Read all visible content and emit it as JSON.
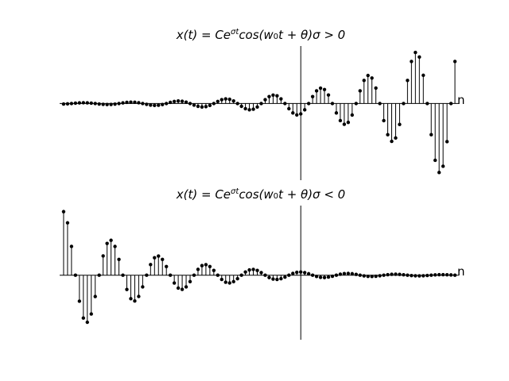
{
  "chart_data": [
    {
      "type": "stem",
      "title": [
        "x(t) = Ce",
        "σt",
        "cos(w",
        "0",
        "t + θ)σ > 0"
      ],
      "xlabel": "n",
      "color": "#000000",
      "xlim": [
        -61,
        40
      ],
      "ylim": [
        -6.4,
        4.8
      ],
      "x": [
        -60,
        -59,
        -58,
        -57,
        -56,
        -55,
        -54,
        -53,
        -52,
        -51,
        -50,
        -49,
        -48,
        -47,
        -46,
        -45,
        -44,
        -43,
        -42,
        -41,
        -40,
        -39,
        -38,
        -37,
        -36,
        -35,
        -34,
        -33,
        -32,
        -31,
        -30,
        -29,
        -28,
        -27,
        -26,
        -25,
        -24,
        -23,
        -22,
        -21,
        -20,
        -19,
        -18,
        -17,
        -16,
        -15,
        -14,
        -13,
        -12,
        -11,
        -10,
        -9,
        -8,
        -7,
        -6,
        -5,
        -4,
        -3,
        -2,
        -1,
        0,
        1,
        2,
        3,
        4,
        5,
        6,
        7,
        8,
        9,
        10,
        11,
        12,
        13,
        14,
        15,
        16,
        17,
        18,
        19,
        20,
        21,
        22,
        23,
        24,
        25,
        26,
        27,
        28,
        29,
        30,
        31,
        32,
        33,
        34,
        35,
        36,
        37,
        38,
        39
      ],
      "values": [
        -0.043,
        -0.026,
        0,
        0.029,
        0.053,
        0.064,
        0.058,
        0.035,
        0,
        -0.039,
        -0.071,
        -0.086,
        -0.079,
        -0.048,
        0,
        0.053,
        0.096,
        0.117,
        0.106,
        0.064,
        0,
        -0.071,
        -0.13,
        -0.157,
        -0.143,
        -0.087,
        0,
        0.096,
        0.175,
        0.212,
        0.193,
        0.117,
        0,
        -0.13,
        -0.236,
        -0.287,
        -0.261,
        -0.158,
        0,
        0.175,
        0.319,
        0.387,
        0.352,
        0.214,
        0,
        -0.236,
        -0.43,
        -0.522,
        -0.475,
        -0.288,
        0,
        0.319,
        0.58,
        0.705,
        0.642,
        0.389,
        0,
        -0.43,
        -0.784,
        -0.951,
        -0.866,
        -0.526,
        0,
        0.581,
        1.058,
        1.284,
        1.169,
        0.71,
        0,
        -0.784,
        -1.428,
        -1.733,
        -1.578,
        -0.958,
        0,
        1.059,
        1.927,
        2.34,
        2.13,
        1.293,
        0,
        -1.429,
        -2.602,
        -3.158,
        -2.875,
        -1.745,
        0,
        1.929,
        3.512,
        4.263,
        3.881,
        2.356,
        0,
        -2.604,
        -4.74,
        -5.755,
        -5.239,
        -3.18,
        0,
        3.514
      ]
    },
    {
      "type": "stem",
      "title": [
        "x(t) = Ce",
        "σt",
        "cos(w",
        "0",
        "t + θ)σ < 0"
      ],
      "xlabel": "n",
      "color": "#000000",
      "xlim": [
        -61,
        40
      ],
      "ylim": [
        -5.1,
        5.5
      ],
      "x": [
        -60,
        -59,
        -58,
        -57,
        -56,
        -55,
        -54,
        -53,
        -52,
        -51,
        -50,
        -49,
        -48,
        -47,
        -46,
        -45,
        -44,
        -43,
        -42,
        -41,
        -40,
        -39,
        -38,
        -37,
        -36,
        -35,
        -34,
        -33,
        -32,
        -31,
        -30,
        -29,
        -28,
        -27,
        -26,
        -25,
        -24,
        -23,
        -22,
        -21,
        -20,
        -19,
        -18,
        -17,
        -16,
        -15,
        -14,
        -13,
        -12,
        -11,
        -10,
        -9,
        -8,
        -7,
        -6,
        -5,
        -4,
        -3,
        -2,
        -1,
        0,
        1,
        2,
        3,
        4,
        5,
        6,
        7,
        8,
        9,
        10,
        11,
        12,
        13,
        14,
        15,
        16,
        17,
        18,
        19,
        20,
        21,
        22,
        23,
        24,
        25,
        26,
        27,
        28,
        29,
        30,
        31,
        32,
        33,
        34,
        35,
        36,
        37,
        38,
        39
      ],
      "values": [
        5.021,
        4.136,
        2.272,
        0,
        -2.056,
        -3.387,
        -3.72,
        -3.065,
        -1.683,
        0,
        1.523,
        2.509,
        2.756,
        2.27,
        1.247,
        0,
        -1.128,
        -1.858,
        -2.041,
        -1.682,
        -0.924,
        0,
        0.836,
        1.377,
        1.512,
        1.246,
        0.684,
        0,
        -0.619,
        -1.02,
        -1.12,
        -0.923,
        -0.507,
        0,
        0.459,
        0.756,
        0.83,
        0.684,
        0.376,
        0,
        -0.34,
        -0.559,
        -0.615,
        -0.507,
        -0.278,
        0,
        0.252,
        0.415,
        0.456,
        0.375,
        0.206,
        0,
        -0.187,
        -0.307,
        -0.337,
        -0.278,
        -0.153,
        0,
        0.138,
        0.228,
        0.25,
        0.206,
        0.113,
        0,
        -0.103,
        -0.169,
        -0.185,
        -0.152,
        -0.084,
        0,
        0.076,
        0.125,
        0.137,
        0.113,
        0.062,
        0,
        -0.056,
        -0.093,
        -0.102,
        -0.084,
        -0.046,
        0,
        0.042,
        0.068,
        0.075,
        0.062,
        0.034,
        0,
        -0.031,
        -0.051,
        -0.056,
        -0.046,
        -0.025,
        0,
        0.023,
        0.037,
        0.041,
        0.034,
        0.019,
        0
      ]
    }
  ]
}
